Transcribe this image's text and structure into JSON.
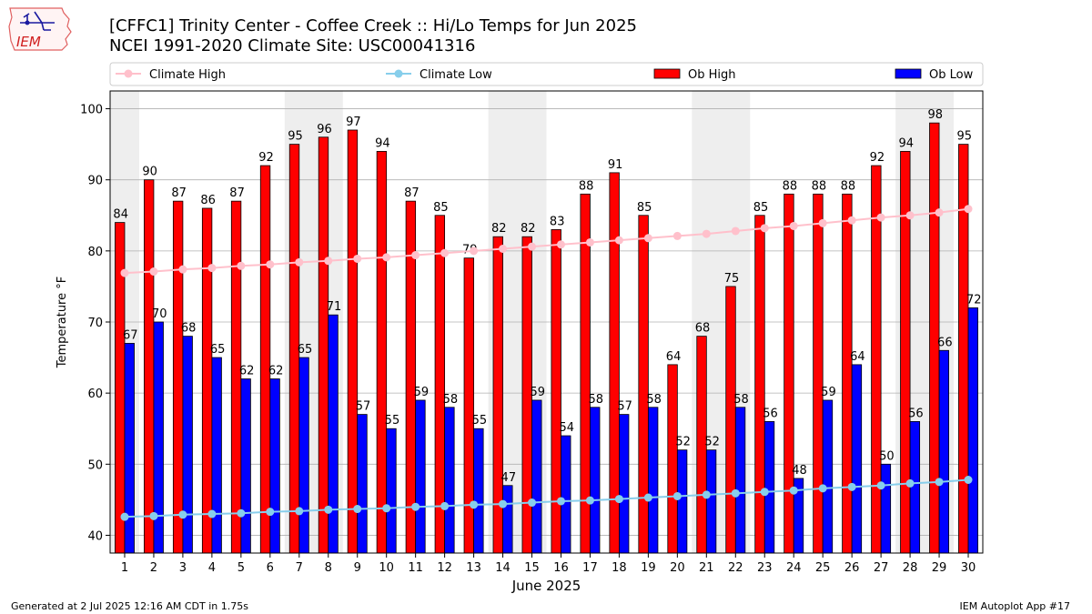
{
  "header": {
    "title_line1": "[CFFC1] Trinity Center - Coffee Creek :: Hi/Lo Temps for Jun 2025",
    "title_line2": "NCEI 1991-2020 Climate Site: USC00041316",
    "logo_text": "IEM"
  },
  "footer": {
    "left": "Generated at 2 Jul 2025 12:16 AM CDT in 1.75s",
    "right": "IEM Autoplot App #17"
  },
  "colors": {
    "ob_high": "#ff0000",
    "ob_low": "#0000ff",
    "climate_high": "#ffc0cb",
    "climate_low": "#87ceeb",
    "weekend_shade": "#eeeeee",
    "grid": "#b0b0b0"
  },
  "chart_data": {
    "type": "bar",
    "xlabel": "June 2025",
    "ylabel": "Temperature °F",
    "ylim": [
      37.5,
      102.5
    ],
    "yticks": [
      40,
      50,
      60,
      70,
      80,
      90,
      100
    ],
    "grid": "horizontal",
    "legend_placement": "top",
    "x": [
      1,
      2,
      3,
      4,
      5,
      6,
      7,
      8,
      9,
      10,
      11,
      12,
      13,
      14,
      15,
      16,
      17,
      18,
      19,
      20,
      21,
      22,
      23,
      24,
      25,
      26,
      27,
      28,
      29,
      30
    ],
    "shaded_weekends": [
      [
        1,
        1
      ],
      [
        7,
        8
      ],
      [
        14,
        15
      ],
      [
        21,
        22
      ],
      [
        28,
        29
      ]
    ],
    "series": [
      {
        "name": "Climate High",
        "kind": "line",
        "values": [
          76.9,
          77.1,
          77.4,
          77.6,
          77.9,
          78.1,
          78.4,
          78.6,
          78.9,
          79.1,
          79.4,
          79.7,
          80.0,
          80.3,
          80.6,
          80.9,
          81.2,
          81.5,
          81.8,
          82.1,
          82.4,
          82.8,
          83.2,
          83.5,
          83.9,
          84.3,
          84.7,
          85.0,
          85.4,
          85.9
        ]
      },
      {
        "name": "Climate Low",
        "kind": "line",
        "values": [
          42.6,
          42.7,
          42.9,
          43.0,
          43.1,
          43.3,
          43.4,
          43.6,
          43.7,
          43.8,
          44.0,
          44.1,
          44.3,
          44.4,
          44.6,
          44.8,
          44.9,
          45.1,
          45.3,
          45.5,
          45.7,
          45.9,
          46.1,
          46.3,
          46.6,
          46.8,
          47.0,
          47.3,
          47.5,
          47.8
        ]
      },
      {
        "name": "Ob High",
        "kind": "bar",
        "values": [
          84,
          90,
          87,
          86,
          87,
          92,
          95,
          96,
          97,
          94,
          87,
          85,
          79,
          82,
          82,
          83,
          88,
          91,
          85,
          64,
          68,
          75,
          85,
          88,
          88,
          88,
          92,
          94,
          98,
          95
        ]
      },
      {
        "name": "Ob Low",
        "kind": "bar",
        "values": [
          67,
          70,
          68,
          65,
          62,
          62,
          65,
          71,
          57,
          55,
          59,
          58,
          55,
          47,
          59,
          54,
          58,
          57,
          58,
          52,
          52,
          58,
          56,
          48,
          59,
          64,
          50,
          56,
          66,
          72
        ]
      }
    ]
  }
}
